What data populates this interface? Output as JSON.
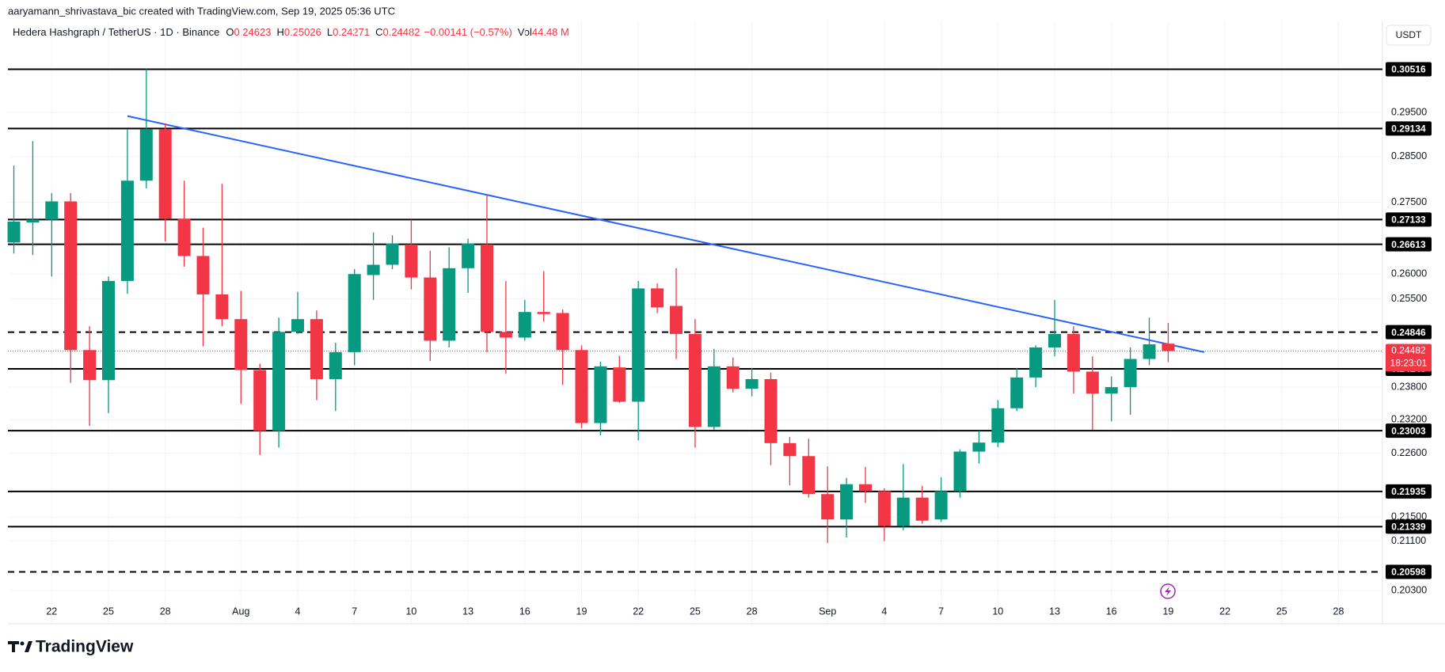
{
  "attribution": "aaryamann_shrivastava_bic created with TradingView.com, Sep 19, 2025 05:36 UTC",
  "logo": "TradingView",
  "chart_data": {
    "type": "candlestick",
    "title": "Hedera Hashgraph / TetherUS · 1D · Binance",
    "legend_labels": {
      "open": "O",
      "high": "H",
      "low": "L",
      "close": "C",
      "volume": "Vol"
    },
    "change": "−0.00141 (−0.57%)",
    "volume": "44.48 M",
    "currency": "USDT",
    "countdown": "18:23:01",
    "up_color": "#089981",
    "down_color": "#f23645",
    "log_scale": true,
    "grid": true,
    "categories": [
      null,
      null,
      "22",
      null,
      null,
      "25",
      null,
      null,
      "28",
      null,
      null,
      null,
      "Aug",
      null,
      null,
      "4",
      null,
      null,
      "7",
      null,
      null,
      "10",
      null,
      null,
      "13",
      null,
      null,
      "16",
      null,
      null,
      "19",
      null,
      null,
      "22",
      null,
      null,
      "25",
      null,
      null,
      "28",
      null,
      null,
      null,
      "Sep",
      null,
      null,
      "4",
      null,
      null,
      "7",
      null,
      null,
      "10",
      null,
      null,
      "13",
      null,
      null,
      "16",
      null,
      null,
      "19",
      null,
      null,
      "22",
      null,
      null,
      "25",
      null,
      null,
      "28",
      null
    ],
    "open": [
      0.2665,
      0.2707,
      0.2713,
      0.2752,
      0.245,
      0.2393,
      0.2586,
      0.2797,
      0.2912,
      0.2715,
      0.2637,
      0.2559,
      0.251,
      0.2412,
      0.23,
      0.2485,
      0.251,
      0.2395,
      0.2446,
      0.2598,
      0.2619,
      0.2661,
      0.2593,
      0.2468,
      0.2612,
      0.2661,
      0.2485,
      0.2474,
      0.2524,
      0.2522,
      0.245,
      0.2314,
      0.2417,
      0.2353,
      0.2571,
      0.2536,
      0.2481,
      0.2307,
      0.2419,
      0.2377,
      0.2395,
      0.2278,
      0.2255,
      0.2189,
      0.2146,
      0.2206,
      0.2194,
      0.2135,
      0.2183,
      0.2146,
      0.2194,
      0.2263,
      0.2279,
      0.2341,
      0.2398,
      0.2455,
      0.2481,
      0.2409,
      0.2368,
      0.238,
      0.2433,
      0.24623,
      null,
      null,
      null,
      null,
      null,
      null,
      null,
      null,
      null,
      null
    ],
    "high": [
      0.283,
      0.2885,
      0.277,
      0.277,
      0.2496,
      0.2595,
      0.2912,
      0.3052,
      0.2925,
      0.2797,
      0.2696,
      0.279,
      0.2566,
      0.2424,
      0.2513,
      0.2564,
      0.2527,
      0.2464,
      0.261,
      0.2686,
      0.268,
      0.2713,
      0.2648,
      0.2655,
      0.2673,
      0.2766,
      0.2586,
      0.2548,
      0.2606,
      0.2529,
      0.2459,
      0.2428,
      0.2439,
      0.2586,
      0.2581,
      0.2612,
      0.251,
      0.2452,
      0.2436,
      0.2416,
      0.2407,
      0.2289,
      0.2286,
      0.2237,
      0.2217,
      0.2236,
      0.2199,
      0.2241,
      0.2203,
      0.2218,
      0.2267,
      0.23,
      0.2356,
      0.2416,
      0.2459,
      0.2548,
      0.2496,
      0.2438,
      0.24,
      0.2455,
      0.2513,
      0.25026,
      null,
      null,
      null,
      null,
      null,
      null,
      null,
      null,
      null,
      null
    ],
    "low": [
      0.2642,
      0.2639,
      0.2595,
      0.2388,
      0.2309,
      0.2332,
      0.256,
      0.278,
      0.2667,
      0.2615,
      0.2457,
      0.2496,
      0.2349,
      0.2257,
      0.227,
      0.2481,
      0.2356,
      0.2336,
      0.2421,
      0.2548,
      0.261,
      0.2569,
      0.2429,
      0.2455,
      0.2562,
      0.2446,
      0.2405,
      0.2468,
      0.2505,
      0.2384,
      0.2305,
      0.2292,
      0.2351,
      0.2283,
      0.2522,
      0.2433,
      0.227,
      0.2302,
      0.237,
      0.2363,
      0.2239,
      0.2204,
      0.2183,
      0.2107,
      0.2116,
      0.2174,
      0.211,
      0.2128,
      0.2139,
      0.2142,
      0.2183,
      0.2242,
      0.2271,
      0.2336,
      0.238,
      0.2438,
      0.2368,
      0.2302,
      0.2317,
      0.2329,
      0.2421,
      0.24271,
      null,
      null,
      null,
      null,
      null,
      null,
      null,
      null,
      null,
      null
    ],
    "close": [
      0.2709,
      0.2713,
      0.2752,
      0.245,
      0.2393,
      0.2586,
      0.2797,
      0.2912,
      0.2715,
      0.2637,
      0.2559,
      0.251,
      0.2412,
      0.23,
      0.2485,
      0.251,
      0.2395,
      0.2446,
      0.26,
      0.2619,
      0.2663,
      0.2593,
      0.2468,
      0.2612,
      0.2663,
      0.2485,
      0.2474,
      0.2524,
      0.252,
      0.245,
      0.2314,
      0.2419,
      0.2353,
      0.2571,
      0.2533,
      0.2481,
      0.2307,
      0.2419,
      0.2377,
      0.2395,
      0.2278,
      0.2255,
      0.2189,
      0.2146,
      0.2206,
      0.2194,
      0.2135,
      0.2183,
      0.2144,
      0.2194,
      0.2263,
      0.2279,
      0.2341,
      0.2398,
      0.2455,
      0.2481,
      0.2409,
      0.2368,
      0.238,
      0.2433,
      0.2461,
      0.24482,
      null,
      null,
      null,
      null,
      null,
      null,
      null,
      null,
      null,
      null
    ],
    "ylim": [
      0.1978,
      0.317
    ],
    "yticks": [
      {
        "value": 0.295,
        "label": "0.29500"
      },
      {
        "value": 0.285,
        "label": "0.28500"
      },
      {
        "value": 0.275,
        "label": "0.27500"
      },
      {
        "value": 0.26,
        "label": "0.26000"
      },
      {
        "value": 0.255,
        "label": "0.25500"
      },
      {
        "value": 0.238,
        "label": "0.23800"
      },
      {
        "value": 0.232,
        "label": "0.23200"
      },
      {
        "value": 0.226,
        "label": "0.22600"
      },
      {
        "value": 0.215,
        "label": "0.21500"
      },
      {
        "value": 0.211,
        "label": "0.21100"
      },
      {
        "value": 0.203,
        "label": "0.20300"
      }
    ],
    "levels": [
      {
        "value": 0.30516,
        "dashed": false
      },
      {
        "value": 0.29134,
        "dashed": false
      },
      {
        "value": 0.27133,
        "dashed": false
      },
      {
        "value": 0.26613,
        "dashed": false
      },
      {
        "value": 0.24846,
        "dashed": true
      },
      {
        "value": 0.24143,
        "dashed": false
      },
      {
        "value": 0.23003,
        "dashed": false
      },
      {
        "value": 0.21935,
        "dashed": false
      },
      {
        "value": 0.21339,
        "dashed": false
      },
      {
        "value": 0.20598,
        "dashed": true
      }
    ],
    "trendline": {
      "color": "#2962ff",
      "x": [
        6,
        62.9
      ],
      "y": [
        0.2942,
        0.2446
      ]
    }
  }
}
